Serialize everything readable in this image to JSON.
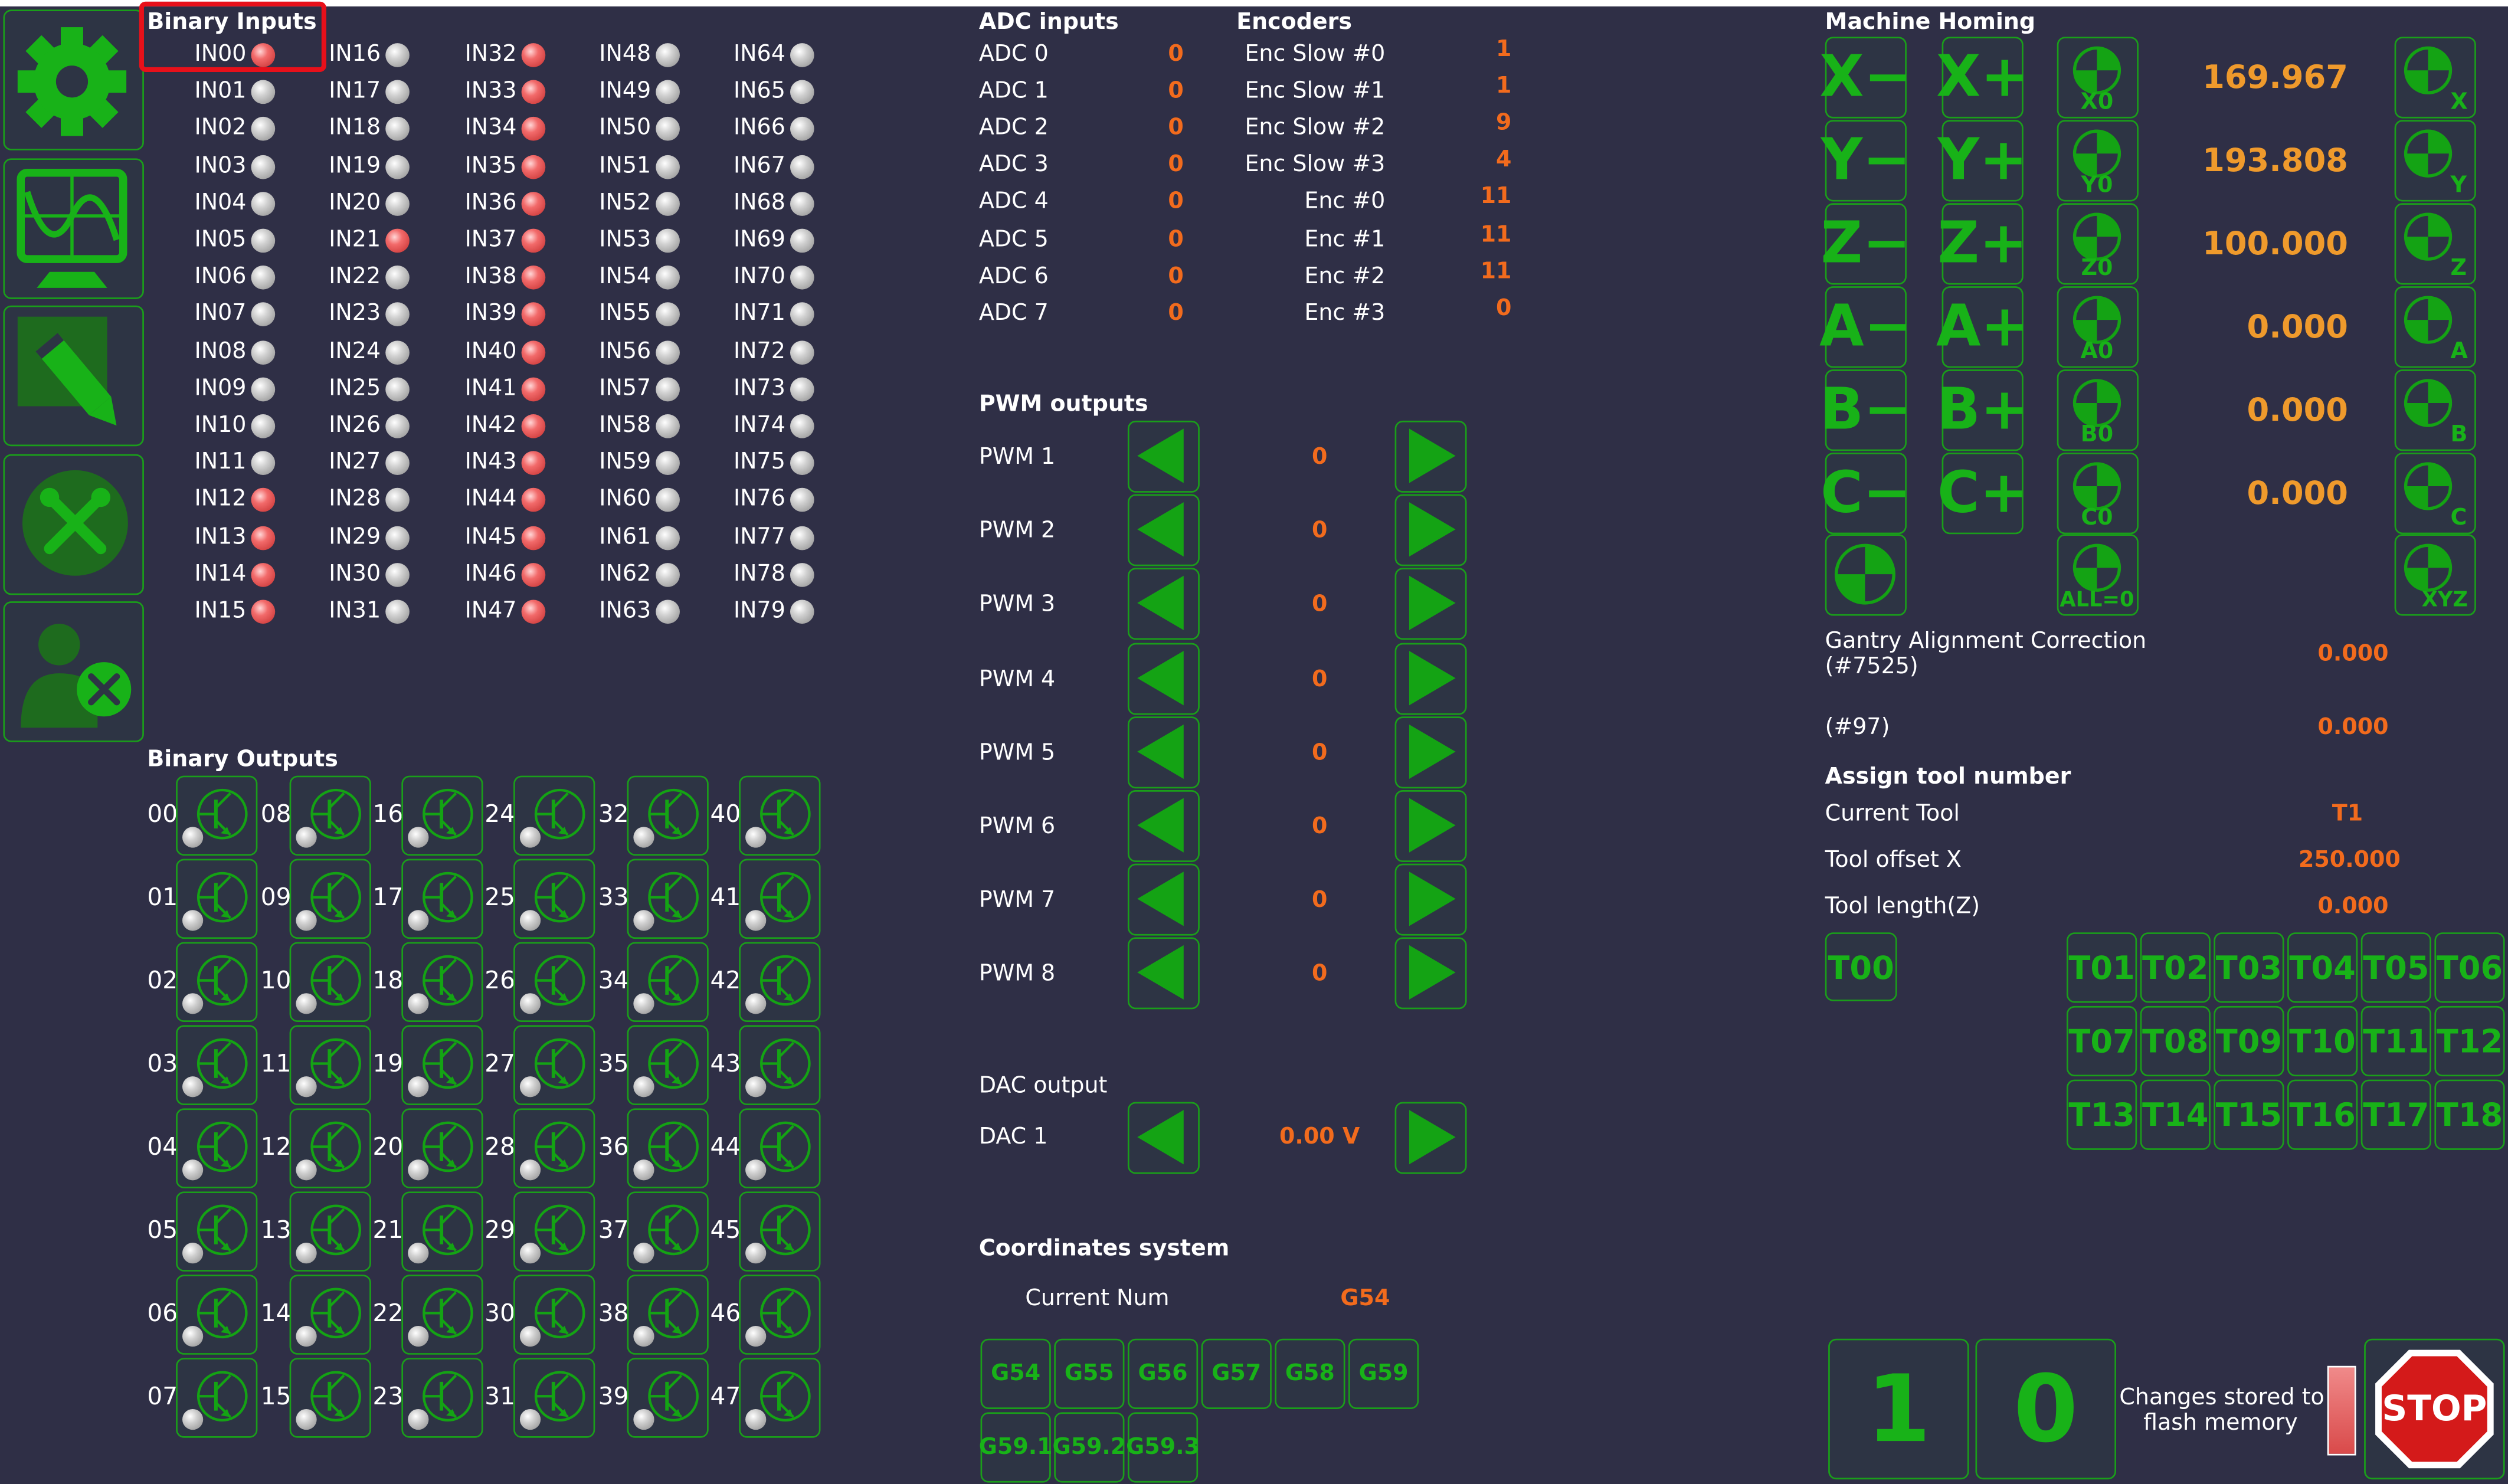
{
  "sidebar": {
    "items": [
      {
        "name": "settings",
        "icon": "gear-icon"
      },
      {
        "name": "oscilloscope",
        "icon": "oscilloscope-icon"
      },
      {
        "name": "edit",
        "icon": "pencil-icon"
      },
      {
        "name": "tools",
        "icon": "tools-icon"
      },
      {
        "name": "user-settings",
        "icon": "user-settings-icon"
      }
    ]
  },
  "binary_inputs": {
    "title": "Binary Inputs",
    "active": [
      0,
      12,
      13,
      14,
      15,
      21,
      32,
      33,
      34,
      35,
      36,
      37,
      38,
      39,
      40,
      41,
      42,
      43,
      44,
      45,
      46,
      47
    ]
  },
  "binary_outputs": {
    "title": "Binary Outputs"
  },
  "adc": {
    "title": "ADC inputs",
    "items": [
      {
        "label": "ADC 0",
        "value": "0"
      },
      {
        "label": "ADC 1",
        "value": "0"
      },
      {
        "label": "ADC 2",
        "value": "0"
      },
      {
        "label": "ADC 3",
        "value": "0"
      },
      {
        "label": "ADC 4",
        "value": "0"
      },
      {
        "label": "ADC 5",
        "value": "0"
      },
      {
        "label": "ADC 6",
        "value": "0"
      },
      {
        "label": "ADC 7",
        "value": "0"
      }
    ]
  },
  "encoders": {
    "title": "Encoders",
    "items": [
      {
        "label": "Enc Slow #0",
        "value": "1"
      },
      {
        "label": "Enc Slow #1",
        "value": "1"
      },
      {
        "label": "Enc Slow #2",
        "value": "9"
      },
      {
        "label": "Enc Slow #3",
        "value": "4"
      },
      {
        "label": "Enc #0",
        "value": "11"
      },
      {
        "label": "Enc #1",
        "value": "11"
      },
      {
        "label": "Enc #2",
        "value": "11"
      },
      {
        "label": "Enc #3",
        "value": "0"
      }
    ]
  },
  "pwm": {
    "title": "PWM outputs",
    "items": [
      {
        "label": "PWM 1",
        "value": "0"
      },
      {
        "label": "PWM 2",
        "value": "0"
      },
      {
        "label": "PWM 3",
        "value": "0"
      },
      {
        "label": "PWM 4",
        "value": "0"
      },
      {
        "label": "PWM 5",
        "value": "0"
      },
      {
        "label": "PWM 6",
        "value": "0"
      },
      {
        "label": "PWM 7",
        "value": "0"
      },
      {
        "label": "PWM 8",
        "value": "0"
      }
    ]
  },
  "dac": {
    "title": "DAC output",
    "label": "DAC 1",
    "value": "0.00 V"
  },
  "coords": {
    "title": "Coordinates system",
    "current_label": "Current Num",
    "current_value": "G54",
    "buttons": [
      "G54",
      "G55",
      "G56",
      "G57",
      "G58",
      "G59",
      "G59.1",
      "G59.2",
      "G59.3"
    ]
  },
  "homing": {
    "title": "Machine Homing",
    "axes": [
      {
        "minus": "X−",
        "plus": "X+",
        "zero": "X0",
        "value": "169.967",
        "home": "X"
      },
      {
        "minus": "Y−",
        "plus": "Y+",
        "zero": "Y0",
        "value": "193.808",
        "home": "Y"
      },
      {
        "minus": "Z−",
        "plus": "Z+",
        "zero": "Z0",
        "value": "100.000",
        "home": "Z"
      },
      {
        "minus": "A−",
        "plus": "A+",
        "zero": "A0",
        "value": "0.000",
        "home": "A"
      },
      {
        "minus": "B−",
        "plus": "B+",
        "zero": "B0",
        "value": "0.000",
        "home": "B"
      },
      {
        "minus": "C−",
        "plus": "C+",
        "zero": "C0",
        "value": "0.000",
        "home": "C"
      }
    ],
    "all_zero": "ALL=0",
    "home_xyz": "XYZ"
  },
  "gantry": {
    "label_line1": "Gantry Alignment Correction",
    "label_line2": "(#7525)",
    "value": "0.000",
    "p97_label": "(#97)",
    "p97_value": "0.000"
  },
  "tool": {
    "title": "Assign tool number",
    "current_label": "Current Tool",
    "current_value": "T1",
    "offset_label": "Tool offset X",
    "offset_value": "250.000",
    "length_label": "Tool length(Z)",
    "length_value": "0.000",
    "t00": "T00",
    "buttons": [
      "T01",
      "T02",
      "T03",
      "T04",
      "T05",
      "T06",
      "T07",
      "T08",
      "T09",
      "T10",
      "T11",
      "T12",
      "T13",
      "T14",
      "T15",
      "T16",
      "T17",
      "T18"
    ]
  },
  "footer": {
    "btn_one": "1",
    "btn_zero": "0",
    "flash_line1": "Changes stored to",
    "flash_line2": "flash memory",
    "stop": "STOP"
  },
  "colors": {
    "background": "#2f2f46",
    "accent_green": "#19a319",
    "value_orange": "#f26b1d",
    "led_active": "#e85555",
    "led_inactive": "#c8c8c8",
    "stop_red": "#d41a1a"
  }
}
